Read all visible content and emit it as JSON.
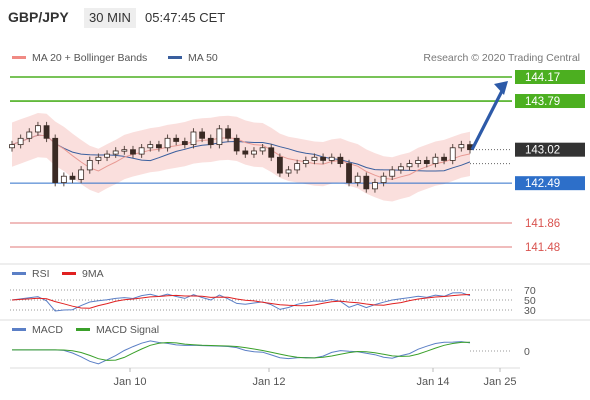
{
  "header": {
    "symbol": "GBP/JPY",
    "timeframe": "30 MIN",
    "time": "05:47:45 CET"
  },
  "legend_main": {
    "items": [
      {
        "label": "MA 20 + Bollinger Bands",
        "color": "#f08a84"
      },
      {
        "label": "MA 50",
        "color": "#3a5f9e"
      }
    ],
    "credit": "Research © 2020 Trading Central"
  },
  "legend_rsi": {
    "items": [
      {
        "label": "RSI",
        "color": "#5b7fc6"
      },
      {
        "label": "9MA",
        "color": "#e02020"
      }
    ]
  },
  "legend_macd": {
    "items": [
      {
        "label": "MACD",
        "color": "#5b7fc6"
      },
      {
        "label": "MACD Signal",
        "color": "#3aa02a"
      }
    ]
  },
  "chart_data": {
    "type": "candlestick",
    "price_panel": {
      "ylim": [
        141.35,
        144.35
      ],
      "levels": [
        {
          "label": "144.17",
          "value": 144.17,
          "kind": "resistance",
          "color": "#4caf20"
        },
        {
          "label": "143.79",
          "value": 143.79,
          "kind": "resistance",
          "color": "#4caf20"
        },
        {
          "label": "143.02",
          "value": 143.02,
          "kind": "last_price",
          "color": "#333333"
        },
        {
          "label": "142.49",
          "value": 142.49,
          "kind": "pivot",
          "color": "#2d6fc9"
        },
        {
          "label": "141.86",
          "value": 141.86,
          "kind": "support",
          "color": "#e07a7a"
        },
        {
          "label": "141.48",
          "value": 141.48,
          "kind": "support",
          "color": "#e07a7a"
        }
      ],
      "close_approx": [
        143.1,
        143.2,
        143.3,
        143.4,
        143.2,
        142.5,
        142.6,
        142.55,
        142.7,
        142.85,
        142.9,
        142.95,
        143.0,
        143.02,
        142.95,
        143.05,
        143.1,
        143.05,
        143.2,
        143.15,
        143.1,
        143.3,
        143.2,
        143.1,
        143.35,
        143.2,
        143.0,
        142.95,
        143.0,
        143.05,
        142.9,
        142.65,
        142.7,
        142.8,
        142.85,
        142.9,
        142.85,
        142.9,
        142.8,
        142.5,
        142.6,
        142.4,
        142.5,
        142.6,
        142.7,
        142.75,
        142.8,
        142.85,
        142.8,
        142.9,
        142.85,
        143.05,
        143.1,
        143.02
      ],
      "projection_arrow": {
        "target": 144.17
      }
    },
    "rsi_panel": {
      "levels": [
        {
          "label": "70",
          "value": 70
        },
        {
          "label": "50",
          "value": 50
        },
        {
          "label": "30",
          "value": 30
        }
      ]
    },
    "macd_panel": {
      "levels": [
        {
          "label": "0",
          "value": 0
        }
      ]
    },
    "x_ticks": [
      "Jan 10",
      "Jan 12",
      "Jan 14",
      "Jan 25"
    ]
  }
}
